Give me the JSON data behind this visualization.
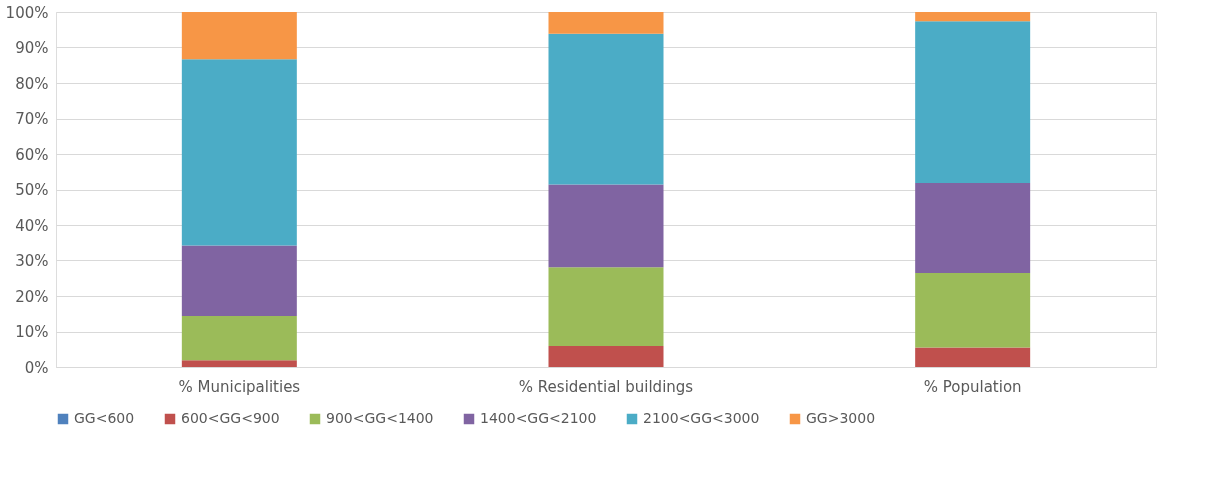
{
  "chart_data": {
    "type": "bar",
    "stacked": true,
    "categories": [
      "% Municipalities",
      "% Residential buildings",
      "% Population"
    ],
    "series": [
      {
        "name": "GG<600",
        "color": "#4f81bd",
        "values": [
          0,
          0,
          0
        ]
      },
      {
        "name": "600<GG<900",
        "color": "#c0504d",
        "values": [
          1.9,
          5.9,
          5.5
        ]
      },
      {
        "name": "900<GG<1400",
        "color": "#9bbb59",
        "values": [
          12.5,
          22.2,
          21.0
        ]
      },
      {
        "name": "1400<GG<2100",
        "color": "#8064a2",
        "values": [
          19.8,
          23.3,
          25.3
        ]
      },
      {
        "name": "2100<GG<3000",
        "color": "#4bacc6",
        "values": [
          52.5,
          42.5,
          45.6
        ]
      },
      {
        "name": "GG>3000",
        "color": "#f79646",
        "values": [
          13.3,
          6.1,
          2.6
        ]
      }
    ],
    "ylim": [
      0,
      100
    ],
    "yticks": [
      {
        "value": 0,
        "label": "0%"
      },
      {
        "value": 10,
        "label": "10%"
      },
      {
        "value": 20,
        "label": "20%"
      },
      {
        "value": 30,
        "label": "30%"
      },
      {
        "value": 40,
        "label": "40%"
      },
      {
        "value": 50,
        "label": "50%"
      },
      {
        "value": 60,
        "label": "60%"
      },
      {
        "value": 70,
        "label": "70%"
      },
      {
        "value": 80,
        "label": "80%"
      },
      {
        "value": 90,
        "label": "90%"
      },
      {
        "value": 100,
        "label": "100%"
      }
    ],
    "grid": "y",
    "legend": "bottom"
  }
}
